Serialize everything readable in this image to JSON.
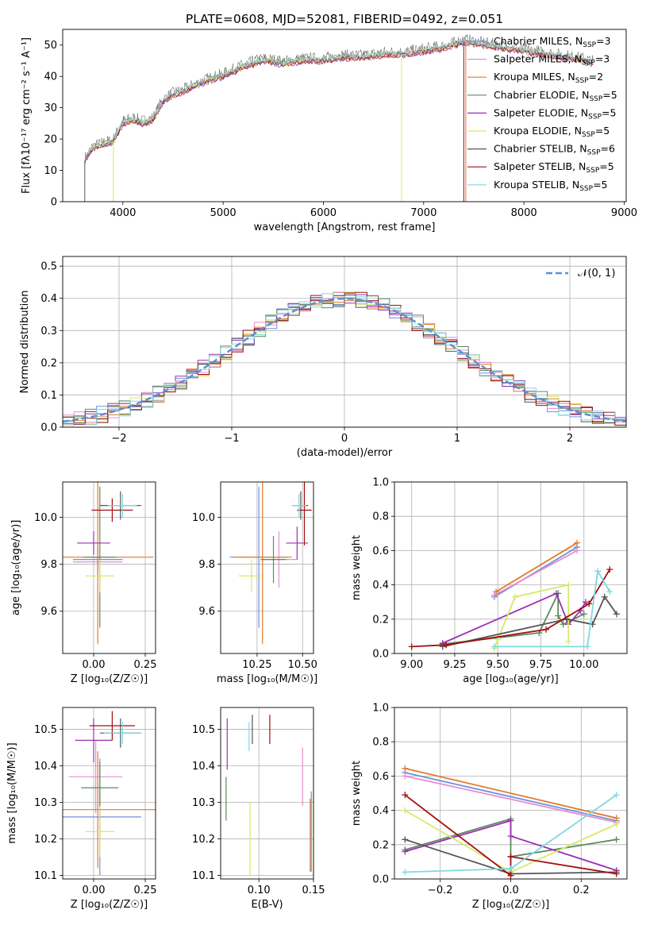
{
  "colors": {
    "palette": [
      "#6f8fe0",
      "#e68fcf",
      "#e07b2a",
      "#5c8a5c",
      "#9b30b5",
      "#d6e86a",
      "#555555",
      "#a01010",
      "#7fd8e0"
    ],
    "normal_curve": "#5b8fd6",
    "grid": "#b0b0b0"
  },
  "chart_data": [
    {
      "id": "spectrum",
      "type": "line",
      "title": "PLATE=0608, MJD=52081, FIBERID=0492, z=0.051",
      "xlabel": "wavelength [Angstrom, rest frame]",
      "ylabel": "Flux [fλ10⁻¹⁷ erg cm⁻² s⁻¹ A⁻¹]",
      "xlim": [
        3400,
        9020
      ],
      "ylim": [
        0,
        55
      ],
      "xticks": [
        4000,
        5000,
        6000,
        7000,
        8000,
        9000
      ],
      "yticks": [
        0,
        10,
        20,
        30,
        40,
        50
      ],
      "grid": false,
      "legend_placement": "top-right",
      "series": [
        {
          "name": "Chabrier MILES, N",
          "sub": "SSP",
          "tail": "=3"
        },
        {
          "name": "Salpeter MILES, N",
          "sub": "SSP",
          "tail": "=3"
        },
        {
          "name": "Kroupa MILES, N",
          "sub": "SSP",
          "tail": "=2"
        },
        {
          "name": "Chabrier ELODIE, N",
          "sub": "SSP",
          "tail": "=5"
        },
        {
          "name": "Salpeter ELODIE, N",
          "sub": "SSP",
          "tail": "=5"
        },
        {
          "name": "Kroupa ELODIE, N",
          "sub": "SSP",
          "tail": "=5"
        },
        {
          "name": "Chabrier STELIB, N",
          "sub": "SSP",
          "tail": "=6"
        },
        {
          "name": "Salpeter STELIB, N",
          "sub": "SSP",
          "tail": "=5"
        },
        {
          "name": "Kroupa STELIB, N",
          "sub": "SSP",
          "tail": "=5"
        }
      ],
      "continuum": {
        "x": [
          3620,
          3700,
          3800,
          3900,
          4000,
          4100,
          4200,
          4300,
          4400,
          4500,
          4600,
          4800,
          5000,
          5200,
          5400,
          5600,
          5800,
          6000,
          6200,
          6400,
          6600,
          6800,
          7000,
          7200,
          7400,
          7600,
          7800,
          8000,
          8200,
          8400,
          8600,
          8700
        ],
        "y": [
          13,
          17,
          18,
          19,
          25,
          26,
          25,
          26,
          32,
          34,
          35,
          38,
          40,
          43,
          45,
          44,
          45,
          45,
          46,
          46,
          47,
          47,
          48,
          49,
          51,
          50,
          49,
          48,
          47,
          46,
          45,
          44
        ]
      }
    },
    {
      "id": "residuals",
      "type": "line",
      "xlabel": "(data-model)/error",
      "ylabel": "Normed distribution",
      "xlim": [
        -2.5,
        2.5
      ],
      "ylim": [
        0,
        0.53
      ],
      "xticks": [
        -2,
        -1,
        0,
        1,
        2
      ],
      "yticks": [
        0.0,
        0.1,
        0.2,
        0.3,
        0.4,
        0.5
      ],
      "grid": true,
      "legend_placement": "top-right",
      "legend": "𝒩(0, 1)"
    },
    {
      "id": "age_vs_Z",
      "type": "scatter",
      "xlabel": "Z [log₁₀(Z/Z☉)]",
      "ylabel": "age  [log₁₀(age/yr)]",
      "xlim": [
        -0.15,
        0.3
      ],
      "ylim": [
        9.42,
        10.15
      ],
      "xticks": [
        0.0,
        0.25
      ],
      "yticks": [
        9.6,
        9.8,
        10.0
      ],
      "grid": true,
      "points": [
        {
          "x": 0.02,
          "y": 9.82,
          "ex": 0.12,
          "ey": 0.06
        },
        {
          "x": 0.02,
          "y": 9.81,
          "ex": 0.12,
          "ey": 0.06
        },
        {
          "x": 0.02,
          "y": 9.83,
          "ex": 0.27,
          "ey": 0.37
        },
        {
          "x": 0.03,
          "y": 9.83,
          "ex": 0.08,
          "ey": 0.3
        },
        {
          "x": 0.0,
          "y": 9.89,
          "ex": 0.08,
          "ey": 0.05
        },
        {
          "x": 0.03,
          "y": 9.75,
          "ex": 0.07,
          "ey": 0.07
        },
        {
          "x": 0.13,
          "y": 10.05,
          "ex": 0.1,
          "ey": 0.06
        },
        {
          "x": 0.09,
          "y": 10.03,
          "ex": 0.1,
          "ey": 0.05
        },
        {
          "x": 0.14,
          "y": 10.05,
          "ex": 0.07,
          "ey": 0.05
        }
      ]
    },
    {
      "id": "age_vs_mass",
      "type": "scatter",
      "xlabel": "mass [log₁₀(M/M☉)]",
      "ylabel": "",
      "xlim": [
        10.05,
        10.56
      ],
      "ylim": [
        9.42,
        10.15
      ],
      "xticks": [
        10.25,
        10.5
      ],
      "yticks": [
        9.6,
        9.8,
        10.0
      ],
      "grid": true,
      "points": [
        {
          "x": 10.26,
          "y": 9.83,
          "ex": 0.16,
          "ey": 0.3
        },
        {
          "x": 10.37,
          "y": 9.82,
          "ex": 0.1,
          "ey": 0.12
        },
        {
          "x": 10.28,
          "y": 9.83,
          "ex": 0.16,
          "ey": 0.37
        },
        {
          "x": 10.34,
          "y": 9.82,
          "ex": 0.07,
          "ey": 0.1
        },
        {
          "x": 10.47,
          "y": 9.89,
          "ex": 0.06,
          "ey": 0.07
        },
        {
          "x": 10.22,
          "y": 9.75,
          "ex": 0.07,
          "ey": 0.07
        },
        {
          "x": 10.49,
          "y": 10.05,
          "ex": 0.04,
          "ey": 0.06
        },
        {
          "x": 10.51,
          "y": 10.03,
          "ex": 0.04,
          "ey": 0.15
        },
        {
          "x": 10.48,
          "y": 10.05,
          "ex": 0.04,
          "ey": 0.05
        }
      ]
    },
    {
      "id": "weight_vs_age",
      "type": "line",
      "xlabel": "age  [log₁₀(age/yr)]",
      "ylabel": "mass weight",
      "xlim": [
        8.9,
        10.25
      ],
      "ylim": [
        0,
        1.0
      ],
      "xticks": [
        9.0,
        9.25,
        9.5,
        9.75,
        10.0
      ],
      "yticks": [
        0.0,
        0.2,
        0.4,
        0.6,
        0.8,
        1.0
      ],
      "grid": true,
      "series": [
        {
          "x": [
            9.48,
            9.96
          ],
          "y": [
            0.33,
            0.62
          ]
        },
        {
          "x": [
            9.48,
            9.96
          ],
          "y": [
            0.34,
            0.6
          ]
        },
        {
          "x": [
            9.49,
            9.96
          ],
          "y": [
            0.36,
            0.645
          ]
        },
        {
          "x": [
            9.18,
            9.74,
            9.85,
            9.85,
            9.88,
            10.0
          ],
          "y": [
            0.055,
            0.12,
            0.35,
            0.22,
            0.17,
            0.23
          ]
        },
        {
          "x": [
            9.18,
            9.84,
            9.91,
            9.98,
            10.01
          ],
          "y": [
            0.06,
            0.35,
            0.17,
            0.25,
            0.3
          ]
        },
        {
          "x": [
            9.48,
            9.5,
            9.6,
            9.91,
            9.91
          ],
          "y": [
            0.03,
            0.08,
            0.33,
            0.4,
            0.07
          ]
        },
        {
          "x": [
            9.18,
            9.9,
            10.05,
            10.12,
            10.19
          ],
          "y": [
            0.04,
            0.2,
            0.17,
            0.33,
            0.23
          ]
        },
        {
          "x": [
            9.0,
            9.2,
            9.78,
            10.03,
            10.15
          ],
          "y": [
            0.04,
            0.05,
            0.14,
            0.29,
            0.49
          ]
        },
        {
          "x": [
            9.48,
            10.02,
            10.08,
            10.15
          ],
          "y": [
            0.04,
            0.04,
            0.48,
            0.36
          ]
        }
      ]
    },
    {
      "id": "mass_vs_Z",
      "type": "scatter",
      "xlabel": "Z [log₁₀(Z/Z☉)]",
      "ylabel": "mass [log₁₀(M/M☉)]",
      "xlim": [
        -0.15,
        0.3
      ],
      "ylim": [
        10.09,
        10.56
      ],
      "xticks": [
        0.0,
        0.25
      ],
      "yticks": [
        10.1,
        10.2,
        10.3,
        10.4,
        10.5
      ],
      "grid": true,
      "points": [
        {
          "x": 0.03,
          "y": 10.26,
          "ex": 0.2,
          "ey": 0.16
        },
        {
          "x": 0.01,
          "y": 10.37,
          "ex": 0.13,
          "ey": 0.1
        },
        {
          "x": 0.02,
          "y": 10.28,
          "ex": 0.28,
          "ey": 0.16
        },
        {
          "x": 0.03,
          "y": 10.34,
          "ex": 0.09,
          "ey": 0.07
        },
        {
          "x": 0.0,
          "y": 10.47,
          "ex": 0.09,
          "ey": 0.06
        },
        {
          "x": 0.03,
          "y": 10.22,
          "ex": 0.07,
          "ey": 0.07
        },
        {
          "x": 0.13,
          "y": 10.49,
          "ex": 0.1,
          "ey": 0.04
        },
        {
          "x": 0.09,
          "y": 10.51,
          "ex": 0.11,
          "ey": 0.04
        },
        {
          "x": 0.14,
          "y": 10.49,
          "ex": 0.09,
          "ey": 0.03
        }
      ]
    },
    {
      "id": "mass_vs_ebv",
      "type": "scatter",
      "xlabel": "E(B-V)",
      "ylabel": "",
      "xlim": [
        0.065,
        0.15
      ],
      "ylim": [
        10.09,
        10.56
      ],
      "xticks": [
        0.1,
        0.15
      ],
      "yticks": [
        10.1,
        10.2,
        10.3,
        10.4,
        10.5
      ],
      "grid": true,
      "points": [
        {
          "x": 0.148,
          "y": 10.22,
          "ey": 0.11
        },
        {
          "x": 0.14,
          "y": 10.37,
          "ey": 0.08
        },
        {
          "x": 0.147,
          "y": 10.21,
          "ey": 0.1
        },
        {
          "x": 0.07,
          "y": 10.31,
          "ey": 0.06
        },
        {
          "x": 0.071,
          "y": 10.46,
          "ey": 0.07
        },
        {
          "x": 0.092,
          "y": 10.2,
          "ey": 0.1
        },
        {
          "x": 0.094,
          "y": 10.5,
          "ey": 0.04
        },
        {
          "x": 0.11,
          "y": 10.5,
          "ey": 0.04
        },
        {
          "x": 0.091,
          "y": 10.48,
          "ey": 0.04
        }
      ]
    },
    {
      "id": "weight_vs_Z",
      "type": "line",
      "xlabel": "Z [log₁₀(Z/Z☉)]",
      "ylabel": "mass weight",
      "xlim": [
        -0.33,
        0.33
      ],
      "ylim": [
        0,
        1.0
      ],
      "xticks": [
        -0.2,
        0.0,
        0.2
      ],
      "yticks": [
        0.0,
        0.2,
        0.4,
        0.6,
        0.8,
        1.0
      ],
      "grid": true,
      "series": [
        {
          "x": [
            -0.3,
            0.3
          ],
          "y": [
            0.62,
            0.34
          ]
        },
        {
          "x": [
            -0.3,
            0.3
          ],
          "y": [
            0.6,
            0.33
          ]
        },
        {
          "x": [
            -0.3,
            0.3
          ],
          "y": [
            0.645,
            0.355
          ]
        },
        {
          "x": [
            -0.3,
            0.0,
            0.0,
            0.3
          ],
          "y": [
            0.17,
            0.35,
            0.13,
            0.23
          ]
        },
        {
          "x": [
            -0.3,
            0.0,
            0.0,
            0.3
          ],
          "y": [
            0.16,
            0.34,
            0.25,
            0.05
          ]
        },
        {
          "x": [
            -0.3,
            0.0,
            0.3
          ],
          "y": [
            0.4,
            0.04,
            0.32
          ]
        },
        {
          "x": [
            -0.3,
            0.0,
            0.3
          ],
          "y": [
            0.23,
            0.03,
            0.04
          ]
        },
        {
          "x": [
            -0.3,
            0.0,
            0.0,
            0.3
          ],
          "y": [
            0.49,
            0.02,
            0.13,
            0.03
          ]
        },
        {
          "x": [
            -0.3,
            0.0,
            0.3
          ],
          "y": [
            0.04,
            0.06,
            0.49
          ]
        }
      ]
    }
  ]
}
